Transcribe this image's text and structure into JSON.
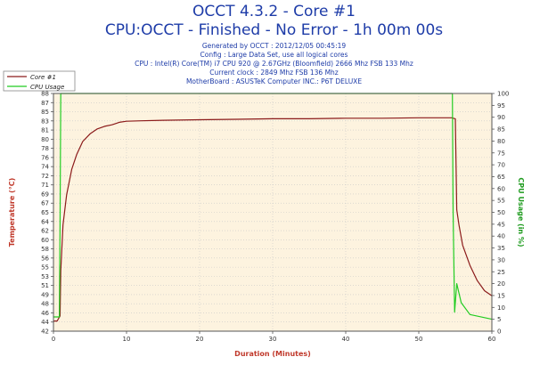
{
  "header": {
    "title": "OCCT 4.3.2 - Core #1",
    "subtitle": "CPU:OCCT - Finished - No Error - 1h 00m 00s",
    "info_lines": [
      "Generated by OCCT : 2012/12/05 00:45:19",
      "Config : Large Data Set, use all logical cores",
      "CPU : Intel(R) Core(TM) i7 CPU 920 @ 2.67GHz (Bloomfield) 2666 Mhz FSB 133 Mhz",
      "Current clock : 2849 Mhz FSB 136 Mhz",
      "MotherBoard : ASUSTeK Computer INC.: P6T DELUXE"
    ]
  },
  "colors": {
    "temperature": "#8b1a1a",
    "cpu_usage": "#22cc22",
    "plot_bg": "#fdf3df",
    "grid": "#c8c8c8",
    "title": "#1e3ca8",
    "axis_label_left": "#c0392b",
    "axis_label_right": "#1f9b1f"
  },
  "chart_data": {
    "type": "line",
    "xlabel": "Duration (Minutes)",
    "ylabel": "Temperature (°C)",
    "y2label": "CPU Usage (in %)",
    "xlim": [
      0,
      60
    ],
    "ylim": [
      42,
      89
    ],
    "y2lim": [
      0,
      100
    ],
    "x_ticks": [
      "0",
      "10",
      "20",
      "30",
      "40",
      "50",
      "60"
    ],
    "y_ticks": [
      "42",
      "44",
      "46",
      "48",
      "49",
      "51",
      "53",
      "55",
      "56",
      "58",
      "60",
      "62",
      "64",
      "65",
      "67",
      "69",
      "71",
      "72",
      "74",
      "76",
      "78",
      "80",
      "81",
      "83",
      "85",
      "87",
      "88"
    ],
    "y2_ticks": [
      "0",
      "5",
      "10",
      "15",
      "20",
      "25",
      "30",
      "35",
      "40",
      "45",
      "50",
      "55",
      "60",
      "65",
      "70",
      "75",
      "80",
      "85",
      "90",
      "95",
      "100"
    ],
    "legend": [
      "Core #1",
      "CPU Usage"
    ],
    "legend_position": "top-left",
    "series": [
      {
        "name": "Core #1",
        "axis": "left",
        "x": [
          0,
          0.5,
          0.9,
          1.0,
          1.3,
          1.8,
          2.5,
          3.2,
          4,
          5,
          6,
          7,
          8,
          9,
          10,
          12,
          15,
          20,
          25,
          30,
          35,
          40,
          45,
          50,
          54.5,
          55,
          55.2,
          55.5,
          56,
          57,
          58,
          59,
          60
        ],
        "values": [
          44,
          44,
          45,
          54,
          63,
          69,
          74,
          77,
          79.5,
          81,
          82,
          82.5,
          82.8,
          83.3,
          83.5,
          83.6,
          83.7,
          83.8,
          83.9,
          84,
          84,
          84.1,
          84.1,
          84.2,
          84.2,
          84,
          66,
          63,
          59,
          55,
          52,
          50,
          49
        ]
      },
      {
        "name": "CPU Usage",
        "axis": "right",
        "x": [
          0,
          0.8,
          0.9,
          1.0,
          54.6,
          54.7,
          54.9,
          55.2,
          55.8,
          57,
          60
        ],
        "values": [
          6,
          6,
          45,
          100,
          100,
          50,
          8,
          20,
          12,
          7,
          5
        ]
      }
    ]
  }
}
